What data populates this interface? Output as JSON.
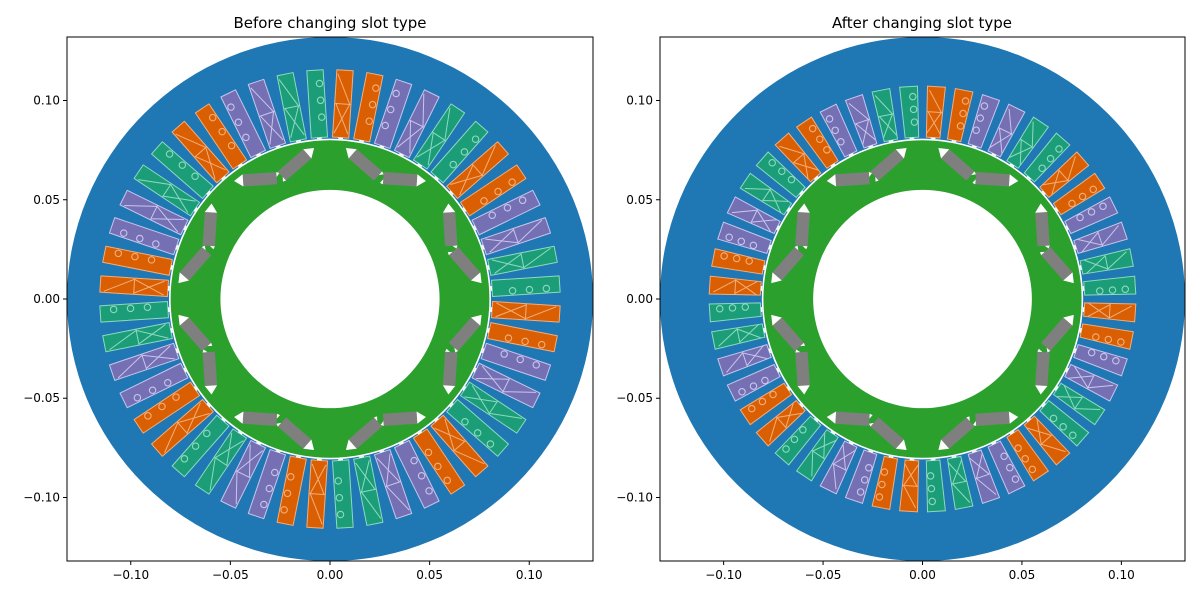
{
  "colors": {
    "stator": "#1f77b4",
    "rotor": "#2ca02c",
    "magnet": "#7f7f7f",
    "pocket": "#ffffff",
    "bore": "#ffffff",
    "phase_colors": [
      "#1b9e77",
      "#7570b3",
      "#d95f02"
    ],
    "phase_edge_colors": [
      "#8fd9c0",
      "#c9c5ec",
      "#f5ae7a"
    ]
  },
  "chart_data": [
    {
      "type": "diagram",
      "title": "Before changing slot type",
      "xlabel": "",
      "ylabel": "",
      "xlim": [
        -0.132,
        0.132
      ],
      "ylim": [
        -0.132,
        0.132
      ],
      "xticks": [
        -0.1,
        -0.05,
        0.0,
        0.05,
        0.1
      ],
      "xtick_labels": [
        "−0.10",
        "−0.05",
        "0.00",
        "0.05",
        "0.10"
      ],
      "yticks": [
        -0.1,
        -0.05,
        0.0,
        0.05,
        0.1
      ],
      "ytick_labels": [
        "−0.10",
        "−0.05",
        "0.00",
        "0.05",
        "0.10"
      ],
      "grid": false,
      "machine": {
        "stator_outer_radius": 0.132,
        "stator_bore_radius": 0.0808,
        "slot_count": 48,
        "slot_type": "rounded-parallel",
        "slot_inner_radius": 0.0815,
        "slot_outer_radius": 0.1155,
        "slot_width": 0.0082,
        "slot_phase_pattern": [
          0,
          0,
          1,
          1,
          2,
          2
        ],
        "rotor_outer_radius": 0.08,
        "rotor_inner_radius": 0.055,
        "pole_count": 8,
        "magnet_vertex_radius": 0.066,
        "magnet_tip_radius": 0.0765,
        "magnet_tip_half_angle_deg": 16.5,
        "magnet_thickness": 0.0062
      }
    },
    {
      "type": "diagram",
      "title": "After changing slot type",
      "xlabel": "",
      "ylabel": "",
      "xlim": [
        -0.132,
        0.132
      ],
      "ylim": [
        -0.132,
        0.132
      ],
      "xticks": [
        -0.1,
        -0.05,
        0.0,
        0.05,
        0.1
      ],
      "xtick_labels": [
        "−0.10",
        "−0.05",
        "0.00",
        "0.05",
        "0.10"
      ],
      "yticks": [
        -0.1,
        -0.05,
        0.0,
        0.05,
        0.1
      ],
      "ytick_labels": [
        "−0.10",
        "−0.05",
        "0.00",
        "0.05",
        "0.10"
      ],
      "grid": false,
      "machine": {
        "stator_outer_radius": 0.132,
        "stator_bore_radius": 0.0808,
        "slot_count": 48,
        "slot_type": "trapezoidal",
        "slot_inner_radius": 0.0815,
        "slot_outer_radius": 0.1072,
        "slot_width_inner": 0.0068,
        "slot_width_outer": 0.009,
        "slot_phase_pattern": [
          0,
          0,
          1,
          1,
          2,
          2
        ],
        "rotor_outer_radius": 0.08,
        "rotor_inner_radius": 0.055,
        "pole_count": 8,
        "magnet_vertex_radius": 0.066,
        "magnet_tip_radius": 0.0765,
        "magnet_tip_half_angle_deg": 16.5,
        "magnet_thickness": 0.0062
      }
    }
  ]
}
